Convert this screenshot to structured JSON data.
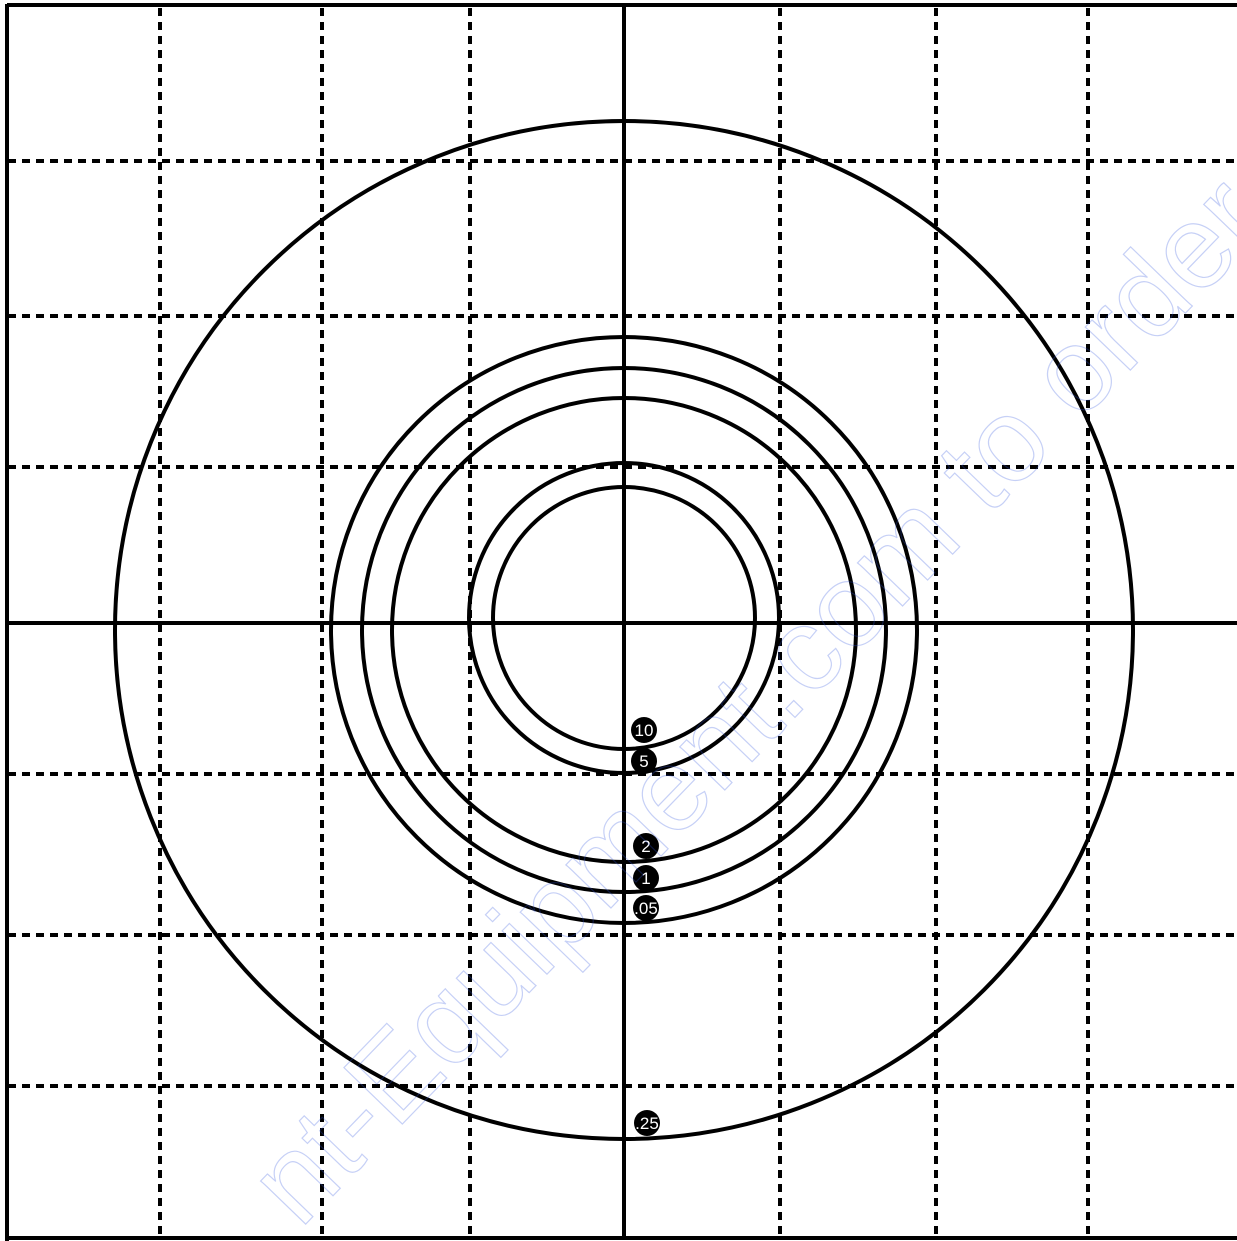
{
  "diagram": {
    "colors": {
      "background": "#ffffff",
      "line": "#000000",
      "badge_fill": "#000000",
      "badge_text": "#ffffff",
      "watermark": "#3355dd"
    },
    "grid_style": "dashed",
    "rings": [
      {
        "label": "10"
      },
      {
        "label": "5"
      },
      {
        "label": "2"
      },
      {
        "label": "1"
      },
      {
        "label": ".05"
      },
      {
        "label": ".25"
      }
    ],
    "watermark_text": "nt-Equipment.com to order you"
  }
}
